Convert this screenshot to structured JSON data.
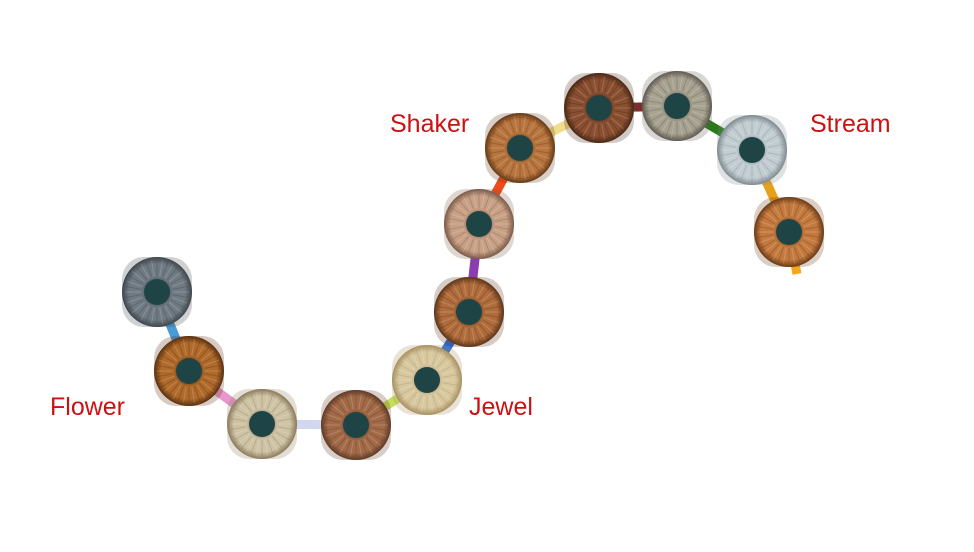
{
  "labels": {
    "flower": "Flower",
    "jewel": "Jewel",
    "shaker": "Shaker",
    "stream": "Stream"
  },
  "colors": {
    "label": "#cc1111",
    "pupil": "#1f4446",
    "background": "#ffffff"
  },
  "irises": [
    {
      "name": "iris-1",
      "tone": "grey-blue",
      "base": "#6f7a82",
      "edge": "#3e464c"
    },
    {
      "name": "iris-2",
      "tone": "amber-brown",
      "base": "#b06a2a",
      "edge": "#5a3010"
    },
    {
      "name": "iris-3",
      "tone": "pale-hazel",
      "base": "#cfc3a6",
      "edge": "#8a7a5a"
    },
    {
      "name": "iris-4",
      "tone": "brown",
      "base": "#a36a48",
      "edge": "#5e3a26"
    },
    {
      "name": "iris-5",
      "tone": "light-hazel",
      "base": "#d8c8a0",
      "edge": "#a89060"
    },
    {
      "name": "iris-6",
      "tone": "brown",
      "base": "#b06c3c",
      "edge": "#5c3418"
    },
    {
      "name": "iris-7",
      "tone": "pale-brown",
      "base": "#c8a086",
      "edge": "#7a5a48"
    },
    {
      "name": "iris-8",
      "tone": "brown",
      "base": "#b8753e",
      "edge": "#643a18"
    },
    {
      "name": "iris-9",
      "tone": "dark-brown",
      "base": "#8a4f30",
      "edge": "#4a2816"
    },
    {
      "name": "iris-10",
      "tone": "grey-hazel",
      "base": "#a7a190",
      "edge": "#5e5a50"
    },
    {
      "name": "iris-11",
      "tone": "blue-grey",
      "base": "#c2cdd2",
      "edge": "#7e8a90"
    },
    {
      "name": "iris-12",
      "tone": "orange-brown",
      "base": "#c47a3e",
      "edge": "#6a3a16"
    }
  ],
  "connectors": [
    {
      "from": "iris-1",
      "to": "iris-2",
      "color": "#4a9ad8"
    },
    {
      "from": "iris-2",
      "to": "iris-3",
      "color": "#e896cc"
    },
    {
      "from": "iris-3",
      "to": "iris-4",
      "color": "#d2d6ee"
    },
    {
      "from": "iris-4",
      "to": "iris-5",
      "color": "#c4e05a"
    },
    {
      "from": "iris-5",
      "to": "iris-6",
      "color": "#2e6ed8"
    },
    {
      "from": "iris-6",
      "to": "iris-7",
      "color": "#8a3cb0"
    },
    {
      "from": "iris-7",
      "to": "iris-8",
      "color": "#ef4a1a"
    },
    {
      "from": "iris-8",
      "to": "iris-9",
      "color": "#f0dc8a"
    },
    {
      "from": "iris-9",
      "to": "iris-10",
      "color": "#7a2e2e"
    },
    {
      "from": "iris-10",
      "to": "iris-11",
      "color": "#2a7a1a"
    },
    {
      "from": "iris-11",
      "to": "iris-12",
      "color": "#e6a01a"
    },
    {
      "from": "iris-12",
      "to": "tail",
      "color": "#f2a81c"
    }
  ]
}
